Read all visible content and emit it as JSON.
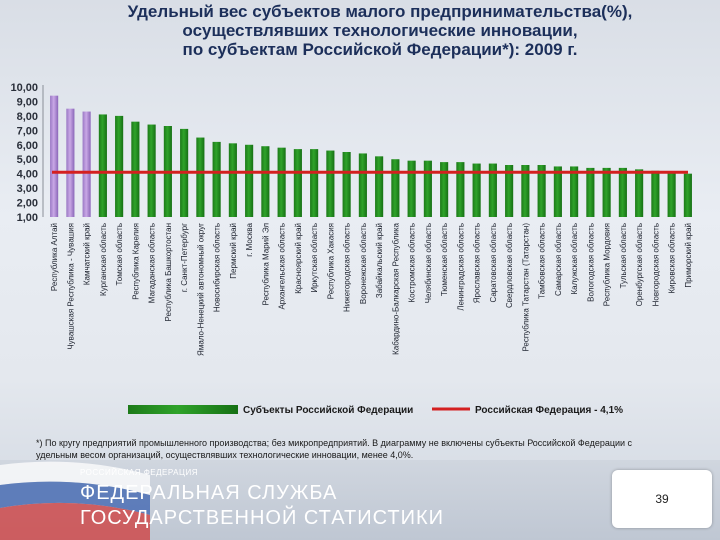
{
  "title_lines": [
    "Удельный вес субъектов малого предпринимательства(%),",
    "осуществлявших технологические инновации,",
    "по субъектам Российской Федерации*): 2009 г."
  ],
  "chart_data": {
    "type": "bar",
    "categories": [
      "Республика Алтай",
      "Чувашская Республика - Чувашия",
      "Камчатский край",
      "Курганская область",
      "Томская область",
      "Республика Карелия",
      "Магаданская область",
      "Республика Башкортостан",
      "г. Санкт-Петербург",
      "Ямало-Ненецкий автономный округ",
      "Новосибирская область",
      "Пермский край",
      "г. Москва",
      "Республика Марий Эл",
      "Архангельская область",
      "Красноярский край",
      "Иркутская область",
      "Республика Хакасия",
      "Нижегородская область",
      "Воронежская область",
      "Забайкальский край",
      "Кабардино-Балкарская Республика",
      "Костромская область",
      "Челябинская область",
      "Тюменская область",
      "Ленинградская область",
      "Ярославская область",
      "Саратовская область",
      "Свердловская область",
      "Республика Татарстан (Татарстан)",
      "Тамбовская область",
      "Самарская область",
      "Калужская область",
      "Вологодская область",
      "Республика Мордовия",
      "Тульская область",
      "Оренбургская область",
      "Новгородская область",
      "Кировская область",
      "Приморский край"
    ],
    "values": [
      9.4,
      8.5,
      8.3,
      8.1,
      8.0,
      7.6,
      7.4,
      7.3,
      7.1,
      6.5,
      6.2,
      6.1,
      6.0,
      5.9,
      5.8,
      5.7,
      5.7,
      5.6,
      5.5,
      5.4,
      5.2,
      5.0,
      4.9,
      4.9,
      4.8,
      4.8,
      4.7,
      4.7,
      4.6,
      4.6,
      4.6,
      4.5,
      4.5,
      4.4,
      4.4,
      4.4,
      4.3,
      4.2,
      4.1,
      4.0
    ],
    "highlight_count": 3,
    "reference_value": 4.1,
    "ylim": [
      1.0,
      10.0
    ],
    "yticks": [
      "1,00",
      "2,00",
      "3,00",
      "4,00",
      "5,00",
      "6,00",
      "7,00",
      "8,00",
      "9,00",
      "10,00"
    ],
    "legend": {
      "bar_label": "Субъекты Российской Федерации",
      "line_label": "Российская Федерация - 4,1%",
      "placement": "bottom"
    },
    "colors": {
      "bar": "#2fa32a",
      "highlight": "#c9a8e6",
      "line": "#d42020"
    }
  },
  "footnote": "*) По кругу предприятий промышленного производства; без микропредприятий. В диаграмму не включены субъекты Российской Федерации с удельным весом организаций, осуществлявших технологические инновации, менее 4,0%.",
  "branding": {
    "top": "РОССИЙСКАЯ ФЕДЕРАЦИЯ",
    "line1": "ФЕДЕРАЛЬНАЯ СЛУЖБА",
    "line2": "ГОСУДАРСТВЕННОЙ СТАТИСТИКИ"
  },
  "page_number": "39"
}
